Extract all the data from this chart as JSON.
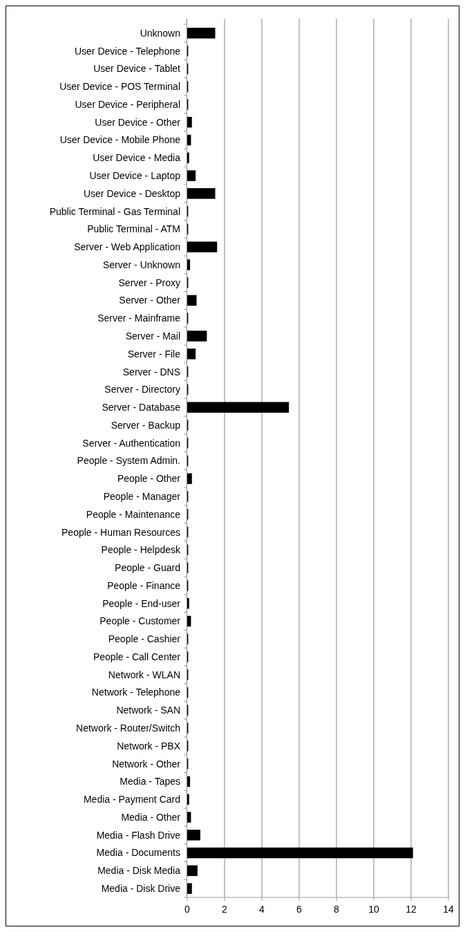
{
  "chart_data": {
    "type": "bar",
    "orientation": "horizontal",
    "color": "#000000",
    "grid": "x",
    "xlim": [
      0,
      14
    ],
    "xticks": [
      0,
      2,
      4,
      6,
      8,
      10,
      12,
      14
    ],
    "categories": [
      "Unknown",
      "User Device - Telephone",
      "User Device - Tablet",
      "User Device - POS Terminal",
      "User Device - Peripheral",
      "User Device - Other",
      "User Device - Mobile Phone",
      "User Device - Media",
      "User Device - Laptop",
      "User Device - Desktop",
      "Public Terminal - Gas Terminal",
      "Public Terminal - ATM",
      "Server - Web Application",
      "Server - Unknown",
      "Server - Proxy",
      "Server - Other",
      "Server - Mainframe",
      "Server - Mail",
      "Server - File",
      "Server - DNS",
      "Server - Directory",
      "Server - Database",
      "Server - Backup",
      "Server - Authentication",
      "People - System Admin.",
      "People - Other",
      "People - Manager",
      "People - Maintenance",
      "People - Human Resources",
      "People - Helpdesk",
      "People - Guard",
      "People - Finance",
      "People - End-user",
      "People - Customer",
      "People - Cashier",
      "People - Call Center",
      "Network - WLAN",
      "Network - Telephone",
      "Network - SAN",
      "Network - Router/Switch",
      "Network - PBX",
      "Network - Other",
      "Media - Tapes",
      "Media - Payment Card",
      "Media - Other",
      "Media - Flash Drive",
      "Media - Documents",
      "Media - Disk Media",
      "Media - Disk Drive"
    ],
    "values": [
      1.5,
      0.05,
      0.05,
      0.05,
      0.05,
      0.25,
      0.2,
      0.1,
      0.45,
      1.5,
      0.05,
      0.05,
      1.6,
      0.15,
      0.05,
      0.5,
      0.05,
      1.05,
      0.45,
      0.05,
      0.05,
      5.45,
      0.05,
      0.05,
      0.05,
      0.25,
      0.05,
      0.05,
      0.05,
      0.05,
      0.05,
      0.05,
      0.1,
      0.2,
      0.05,
      0.05,
      0.05,
      0.05,
      0.05,
      0.05,
      0.05,
      0.05,
      0.15,
      0.1,
      0.2,
      0.7,
      12.1,
      0.55,
      0.25
    ]
  }
}
